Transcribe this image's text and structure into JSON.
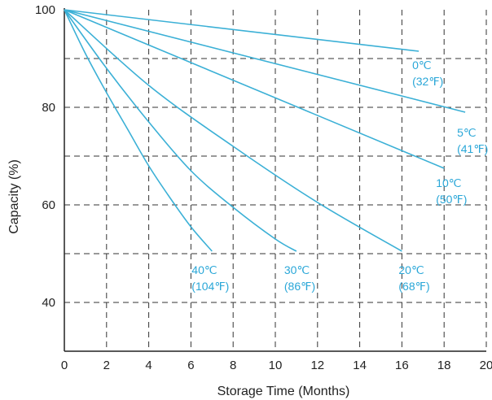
{
  "chart_data": {
    "type": "line",
    "title": "",
    "xlabel": "Storage Time (Months)",
    "ylabel": "Capacity (%)",
    "xlim": [
      0,
      20
    ],
    "ylim": [
      30,
      100
    ],
    "xticks": [
      0,
      2,
      4,
      6,
      8,
      10,
      12,
      14,
      16,
      18,
      20
    ],
    "yticks": [
      40,
      60,
      80,
      100
    ],
    "grid": true,
    "line_color": "#3bb0d6",
    "label_color": "#2aa7d8",
    "series": [
      {
        "name": "0℃ (32℉)",
        "label_lines": [
          "0℃",
          "(32℉)"
        ],
        "x": [
          0,
          16.8
        ],
        "y": [
          100,
          91.5
        ]
      },
      {
        "name": "5℃ (41℉)",
        "label_lines": [
          "5℃",
          "(41℉)"
        ],
        "x": [
          0,
          19
        ],
        "y": [
          100,
          79
        ]
      },
      {
        "name": "10℃ (50℉)",
        "label_lines": [
          "10℃",
          "(50℉)"
        ],
        "x": [
          0,
          18
        ],
        "y": [
          100,
          67.5
        ]
      },
      {
        "name": "20℃ (68℉)",
        "label_lines": [
          "20℃",
          "(68℉)"
        ],
        "x": [
          0,
          4,
          8,
          12,
          16
        ],
        "y": [
          100,
          84.5,
          72,
          60.5,
          50.5
        ]
      },
      {
        "name": "30℃ (86℉)",
        "label_lines": [
          "30℃",
          "(86℉)"
        ],
        "x": [
          0,
          2,
          4,
          6,
          8,
          10,
          11
        ],
        "y": [
          100,
          88,
          77,
          67,
          59.5,
          53,
          50.5
        ]
      },
      {
        "name": "40℃ (104℉)",
        "label_lines": [
          "40℃",
          "(104℉)"
        ],
        "x": [
          0,
          1,
          2,
          3,
          4,
          5,
          6,
          7
        ],
        "y": [
          100,
          91,
          83,
          75.5,
          68,
          61.5,
          55.5,
          50.5
        ]
      }
    ]
  }
}
